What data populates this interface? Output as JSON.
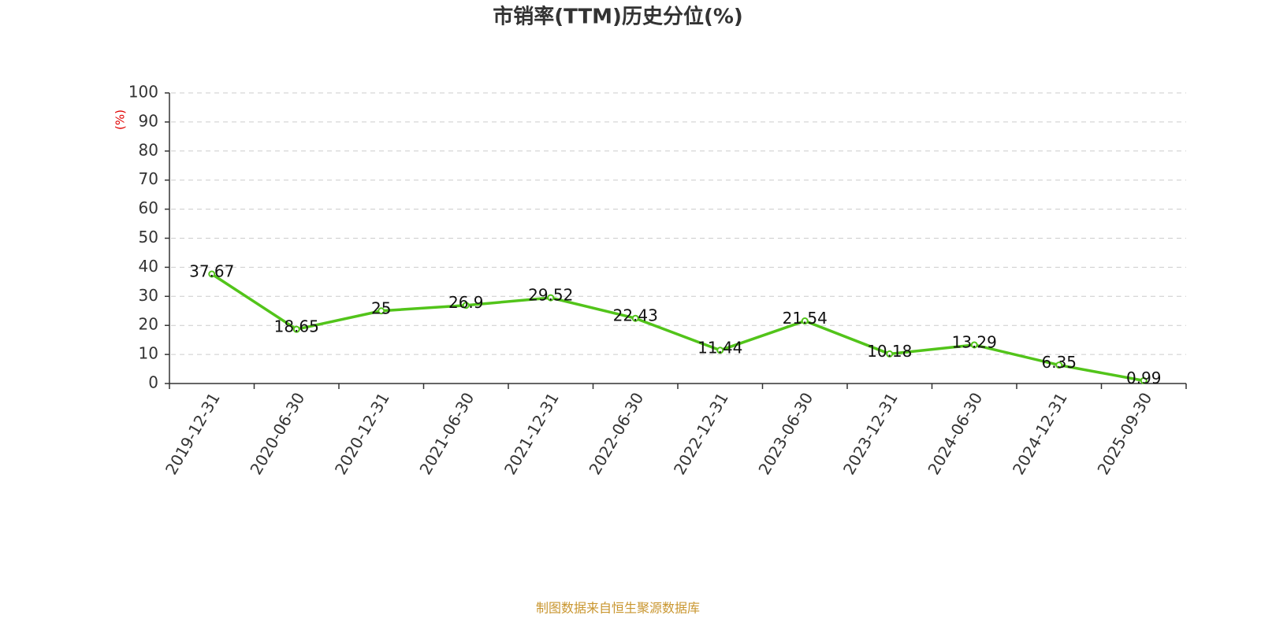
{
  "chart_data": {
    "type": "line",
    "title": "市销率(TTM)历史分位(%)",
    "y_label": "(%)",
    "source": "制图数据来自恒生聚源数据库",
    "categories": [
      "2019-12-31",
      "2020-06-30",
      "2020-12-31",
      "2021-06-30",
      "2021-12-31",
      "2022-06-30",
      "2022-12-31",
      "2023-06-30",
      "2023-12-31",
      "2024-06-30",
      "2024-12-31",
      "2025-09-30"
    ],
    "values": [
      37.67,
      18.65,
      25,
      26.9,
      29.52,
      22.43,
      11.44,
      21.54,
      10.18,
      13.29,
      6.35,
      0.99
    ],
    "color": "#52c41a",
    "ylim": [
      0,
      100
    ],
    "yticks": [
      0,
      10,
      20,
      30,
      40,
      50,
      60,
      70,
      80,
      90,
      100
    ],
    "grid": true
  }
}
